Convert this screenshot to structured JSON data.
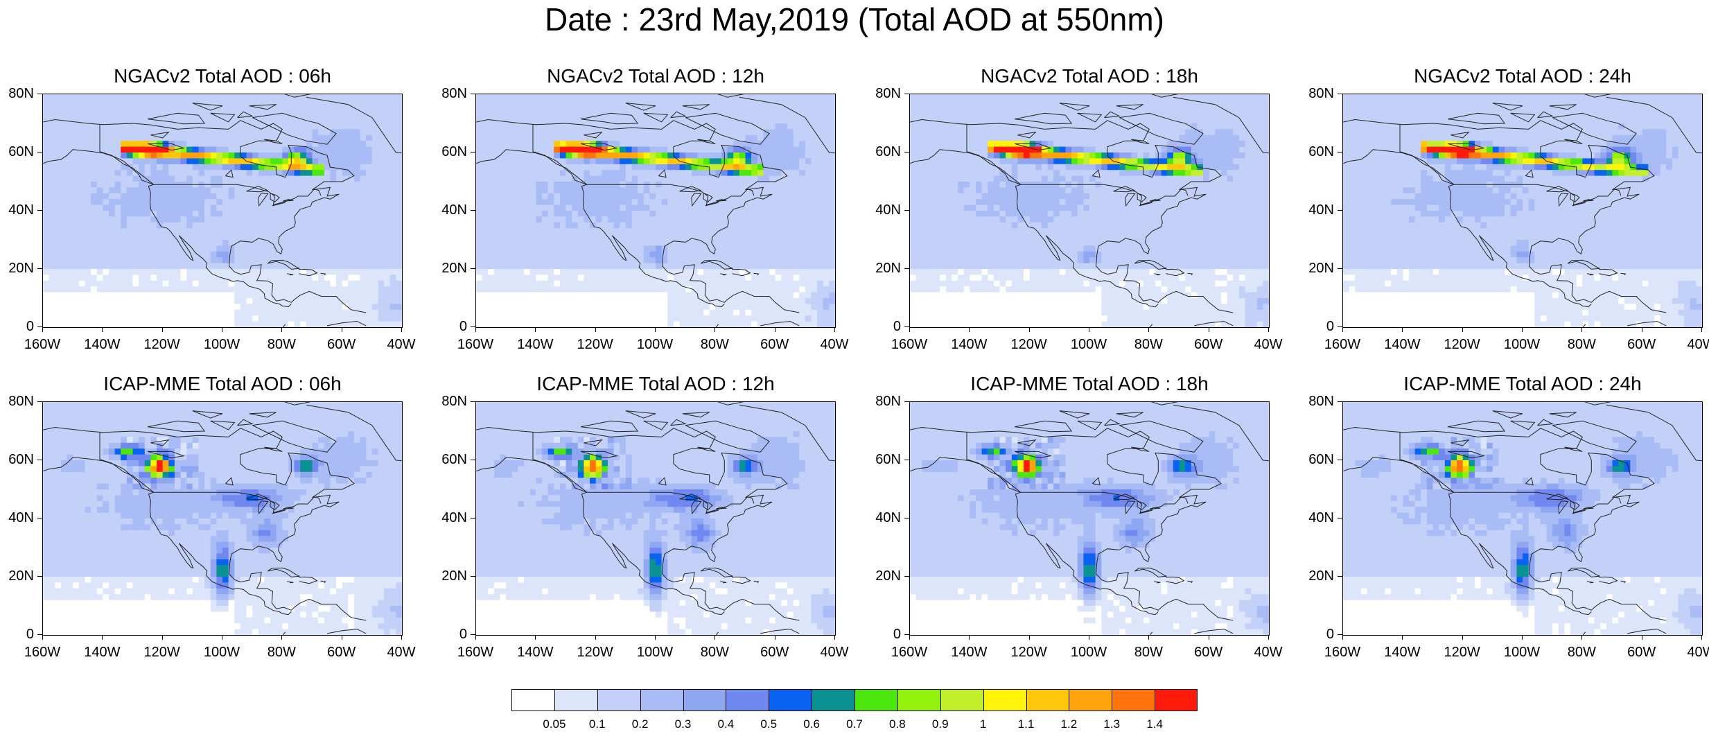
{
  "title": "Date : 23rd May,2019 (Total AOD at 550nm)",
  "x_axis_labels": [
    "160W",
    "140W",
    "120W",
    "100W",
    "80W",
    "60W",
    "40W"
  ],
  "y_axis_labels": [
    "80N",
    "60N",
    "40N",
    "20N",
    "0"
  ],
  "map_extent": {
    "lon": [
      -160,
      -40
    ],
    "lat": [
      0,
      80
    ]
  },
  "panels": [
    {
      "title": "NGACv2 Total AOD : 06h",
      "model": "NGACv2",
      "hour": "06h"
    },
    {
      "title": "NGACv2 Total AOD : 12h",
      "model": "NGACv2",
      "hour": "12h"
    },
    {
      "title": "NGACv2 Total AOD : 18h",
      "model": "NGACv2",
      "hour": "18h"
    },
    {
      "title": "NGACv2 Total AOD : 24h",
      "model": "NGACv2",
      "hour": "24h"
    },
    {
      "title": "ICAP-MME Total AOD : 06h",
      "model": "ICAP-MME",
      "hour": "06h"
    },
    {
      "title": "ICAP-MME Total AOD : 12h",
      "model": "ICAP-MME",
      "hour": "12h"
    },
    {
      "title": "ICAP-MME Total AOD : 18h",
      "model": "ICAP-MME",
      "hour": "18h"
    },
    {
      "title": "ICAP-MME Total AOD : 24h",
      "model": "ICAP-MME",
      "hour": "24h"
    }
  ],
  "colorbar": {
    "labels": [
      "0.05",
      "0.1",
      "0.2",
      "0.3",
      "0.4",
      "0.5",
      "0.6",
      "0.7",
      "0.8",
      "0.9",
      "1",
      "1.1",
      "1.2",
      "1.3",
      "1.4"
    ],
    "colors": [
      "#ffffff",
      "#dde5fb",
      "#c3d1f8",
      "#a9bcf5",
      "#8fa7f2",
      "#7088f0",
      "#0a62f3",
      "#0b9393",
      "#4ce70e",
      "#92f20c",
      "#c3f02a",
      "#fff409",
      "#ffc60b",
      "#ffa40c",
      "#ff740d",
      "#ff1b0c"
    ]
  }
}
